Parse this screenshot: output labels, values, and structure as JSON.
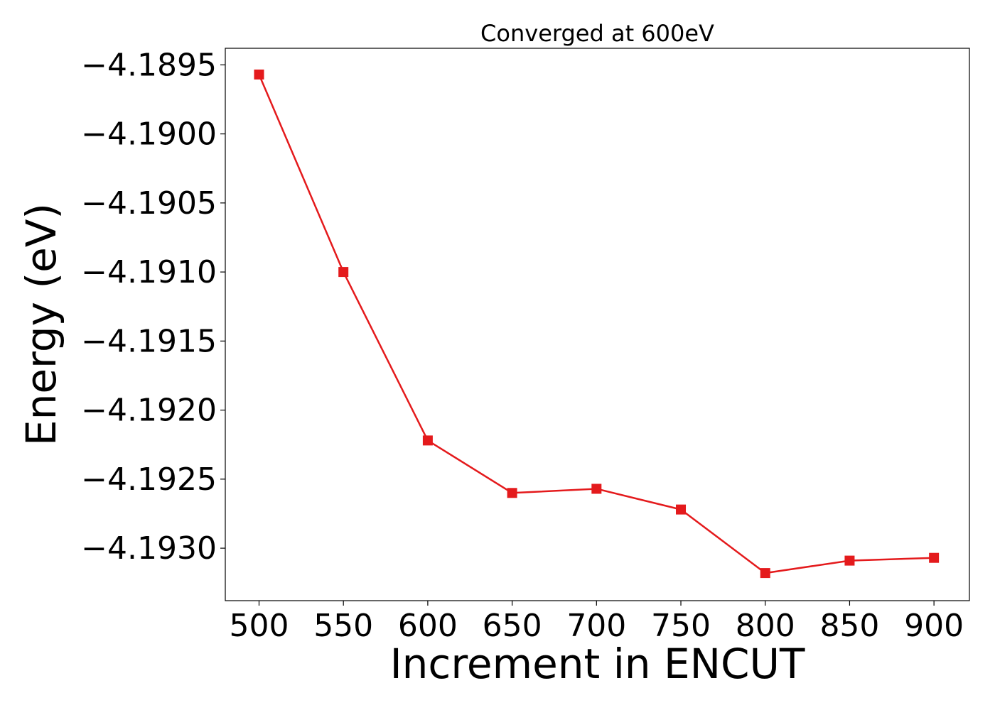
{
  "chart_data": {
    "type": "line",
    "title": "Converged at 600eV",
    "xlabel": "Increment in ENCUT",
    "ylabel": "Energy (eV)",
    "x": [
      500,
      550,
      600,
      650,
      700,
      750,
      800,
      850,
      900
    ],
    "x_tick_labels": [
      "500",
      "550",
      "600",
      "650",
      "700",
      "750",
      "800",
      "850",
      "900"
    ],
    "y_ticks": [
      -4.1895,
      -4.19,
      -4.1905,
      -4.191,
      -4.1915,
      -4.192,
      -4.1925,
      -4.193
    ],
    "y_tick_labels": [
      "−4.1895",
      "−4.1900",
      "−4.1905",
      "−4.1910",
      "−4.1915",
      "−4.1920",
      "−4.1925",
      "−4.1930"
    ],
    "xlim": [
      480,
      921
    ],
    "ylim": [
      -4.19338,
      -4.18938
    ],
    "grid": false,
    "series": [
      {
        "values": [
          -4.18957,
          -4.191,
          -4.19222,
          -4.1926,
          -4.19257,
          -4.19272,
          -4.19318,
          -4.19309,
          -4.19307
        ],
        "color": "#e41a1c",
        "marker": "square"
      }
    ]
  }
}
